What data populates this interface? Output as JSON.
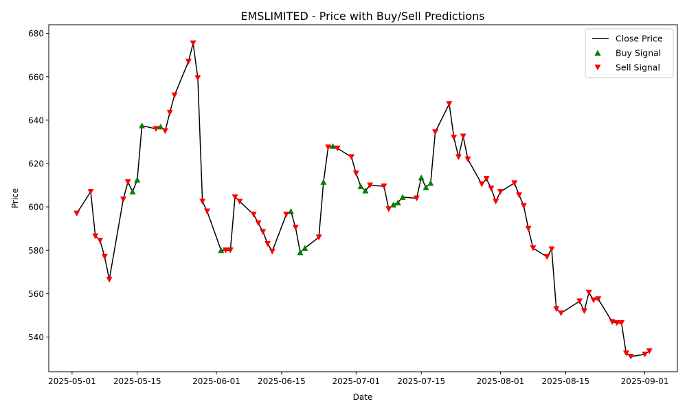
{
  "chart_data": {
    "type": "line",
    "title": "EMSLIMITED - Price with Buy/Sell Predictions",
    "xlabel": "Date",
    "ylabel": "Price",
    "xlim": [
      "2025-04-26",
      "2025-09-08"
    ],
    "ylim": [
      524,
      684
    ],
    "x_ticks": [
      "2025-05-01",
      "2025-05-15",
      "2025-06-01",
      "2025-06-15",
      "2025-07-01",
      "2025-07-15",
      "2025-08-01",
      "2025-08-15",
      "2025-09-01"
    ],
    "y_ticks": [
      540,
      560,
      580,
      600,
      620,
      640,
      660,
      680
    ],
    "grid": false,
    "legend_position": "top-right",
    "colors": {
      "close": "#000000",
      "buy": "#008000",
      "sell": "#ff0000"
    },
    "series": [
      {
        "name": "Close Price",
        "kind": "line",
        "points": [
          [
            "2025-05-02",
            597
          ],
          [
            "2025-05-05",
            607
          ],
          [
            "2025-05-06",
            586.5
          ],
          [
            "2025-05-07",
            584.5
          ],
          [
            "2025-05-08",
            577
          ],
          [
            "2025-05-09",
            566.5
          ],
          [
            "2025-05-12",
            603.5
          ],
          [
            "2025-05-13",
            611.5
          ],
          [
            "2025-05-14",
            607
          ],
          [
            "2025-05-15",
            612.5
          ],
          [
            "2025-05-16",
            637.5
          ],
          [
            "2025-05-19",
            636
          ],
          [
            "2025-05-20",
            637
          ],
          [
            "2025-05-21",
            635
          ],
          [
            "2025-05-22",
            643.5
          ],
          [
            "2025-05-23",
            651.5
          ],
          [
            "2025-05-26",
            667
          ],
          [
            "2025-05-27",
            675.5
          ],
          [
            "2025-05-28",
            659.5
          ],
          [
            "2025-05-29",
            602.5
          ],
          [
            "2025-05-30",
            598
          ],
          [
            "2025-06-02",
            580
          ],
          [
            "2025-06-03",
            580
          ],
          [
            "2025-06-04",
            580
          ],
          [
            "2025-06-05",
            604.5
          ],
          [
            "2025-06-06",
            602.5
          ],
          [
            "2025-06-09",
            596.5
          ],
          [
            "2025-06-10",
            592.5
          ],
          [
            "2025-06-11",
            588.5
          ],
          [
            "2025-06-12",
            583
          ],
          [
            "2025-06-13",
            579.5
          ],
          [
            "2025-06-16",
            596.5
          ],
          [
            "2025-06-17",
            598
          ],
          [
            "2025-06-18",
            590.5
          ],
          [
            "2025-06-19",
            579
          ],
          [
            "2025-06-20",
            581
          ],
          [
            "2025-06-23",
            586
          ],
          [
            "2025-06-24",
            611.5
          ],
          [
            "2025-06-25",
            627.5
          ],
          [
            "2025-06-26",
            628
          ],
          [
            "2025-06-27",
            627
          ],
          [
            "2025-06-30",
            623
          ],
          [
            "2025-07-01",
            615.5
          ],
          [
            "2025-07-02",
            609.5
          ],
          [
            "2025-07-03",
            607.5
          ],
          [
            "2025-07-04",
            610
          ],
          [
            "2025-07-07",
            609.5
          ],
          [
            "2025-07-08",
            599
          ],
          [
            "2025-07-09",
            601
          ],
          [
            "2025-07-10",
            602
          ],
          [
            "2025-07-11",
            604.5
          ],
          [
            "2025-07-14",
            604
          ],
          [
            "2025-07-15",
            613.5
          ],
          [
            "2025-07-16",
            609
          ],
          [
            "2025-07-17",
            611
          ],
          [
            "2025-07-18",
            634.5
          ],
          [
            "2025-07-21",
            647.5
          ],
          [
            "2025-07-22",
            632
          ],
          [
            "2025-07-23",
            623
          ],
          [
            "2025-07-24",
            632.5
          ],
          [
            "2025-07-25",
            622
          ],
          [
            "2025-07-28",
            610.5
          ],
          [
            "2025-07-29",
            613
          ],
          [
            "2025-07-30",
            608.5
          ],
          [
            "2025-07-31",
            602.5
          ],
          [
            "2025-08-01",
            607
          ],
          [
            "2025-08-04",
            611
          ],
          [
            "2025-08-05",
            605.5
          ],
          [
            "2025-08-06",
            600.5
          ],
          [
            "2025-08-07",
            590
          ],
          [
            "2025-08-08",
            581
          ],
          [
            "2025-08-11",
            577
          ],
          [
            "2025-08-12",
            580.5
          ],
          [
            "2025-08-13",
            553
          ],
          [
            "2025-08-14",
            551
          ],
          [
            "2025-08-18",
            556.5
          ],
          [
            "2025-08-19",
            552
          ],
          [
            "2025-08-20",
            560.5
          ],
          [
            "2025-08-21",
            557
          ],
          [
            "2025-08-22",
            557.5
          ],
          [
            "2025-08-25",
            547
          ],
          [
            "2025-08-26",
            546.5
          ],
          [
            "2025-08-27",
            546.5
          ],
          [
            "2025-08-28",
            532.5
          ],
          [
            "2025-08-29",
            531
          ],
          [
            "2025-09-01",
            532
          ],
          [
            "2025-09-02",
            533.5
          ]
        ]
      },
      {
        "name": "Buy Signal",
        "kind": "scatter",
        "marker": "triangle-up",
        "points": [
          [
            "2025-05-14",
            607
          ],
          [
            "2025-05-15",
            612.5
          ],
          [
            "2025-05-16",
            637.5
          ],
          [
            "2025-05-20",
            637
          ],
          [
            "2025-06-02",
            580
          ],
          [
            "2025-06-17",
            598
          ],
          [
            "2025-06-19",
            579
          ],
          [
            "2025-06-20",
            581
          ],
          [
            "2025-06-24",
            611.5
          ],
          [
            "2025-06-26",
            628
          ],
          [
            "2025-07-02",
            609.5
          ],
          [
            "2025-07-03",
            607.5
          ],
          [
            "2025-07-09",
            601
          ],
          [
            "2025-07-10",
            602
          ],
          [
            "2025-07-11",
            604.5
          ],
          [
            "2025-07-15",
            613.5
          ],
          [
            "2025-07-16",
            609
          ],
          [
            "2025-07-17",
            611
          ]
        ]
      },
      {
        "name": "Sell Signal",
        "kind": "scatter",
        "marker": "triangle-down",
        "points": [
          [
            "2025-05-02",
            597
          ],
          [
            "2025-05-05",
            607
          ],
          [
            "2025-05-06",
            586.5
          ],
          [
            "2025-05-07",
            584.5
          ],
          [
            "2025-05-08",
            577
          ],
          [
            "2025-05-09",
            566.5
          ],
          [
            "2025-05-12",
            603.5
          ],
          [
            "2025-05-13",
            611.5
          ],
          [
            "2025-05-19",
            636
          ],
          [
            "2025-05-21",
            635
          ],
          [
            "2025-05-22",
            643.5
          ],
          [
            "2025-05-23",
            651.5
          ],
          [
            "2025-05-26",
            667
          ],
          [
            "2025-05-27",
            675.5
          ],
          [
            "2025-05-28",
            659.5
          ],
          [
            "2025-05-29",
            602.5
          ],
          [
            "2025-05-30",
            598
          ],
          [
            "2025-06-03",
            580
          ],
          [
            "2025-06-04",
            580
          ],
          [
            "2025-06-05",
            604.5
          ],
          [
            "2025-06-06",
            602.5
          ],
          [
            "2025-06-09",
            596.5
          ],
          [
            "2025-06-10",
            592.5
          ],
          [
            "2025-06-11",
            588.5
          ],
          [
            "2025-06-12",
            583
          ],
          [
            "2025-06-13",
            579.5
          ],
          [
            "2025-06-16",
            596.5
          ],
          [
            "2025-06-18",
            590.5
          ],
          [
            "2025-06-23",
            586
          ],
          [
            "2025-06-25",
            627.5
          ],
          [
            "2025-06-27",
            627
          ],
          [
            "2025-06-30",
            623
          ],
          [
            "2025-07-01",
            615.5
          ],
          [
            "2025-07-04",
            610
          ],
          [
            "2025-07-07",
            609.5
          ],
          [
            "2025-07-08",
            599
          ],
          [
            "2025-07-14",
            604
          ],
          [
            "2025-07-18",
            634.5
          ],
          [
            "2025-07-21",
            647.5
          ],
          [
            "2025-07-22",
            632
          ],
          [
            "2025-07-23",
            623
          ],
          [
            "2025-07-24",
            632.5
          ],
          [
            "2025-07-25",
            622
          ],
          [
            "2025-07-28",
            610.5
          ],
          [
            "2025-07-29",
            613
          ],
          [
            "2025-07-30",
            608.5
          ],
          [
            "2025-07-31",
            602.5
          ],
          [
            "2025-08-01",
            607
          ],
          [
            "2025-08-04",
            611
          ],
          [
            "2025-08-05",
            605.5
          ],
          [
            "2025-08-06",
            600.5
          ],
          [
            "2025-08-07",
            590
          ],
          [
            "2025-08-08",
            581
          ],
          [
            "2025-08-11",
            577
          ],
          [
            "2025-08-12",
            580.5
          ],
          [
            "2025-08-13",
            553
          ],
          [
            "2025-08-14",
            551
          ],
          [
            "2025-08-18",
            556.5
          ],
          [
            "2025-08-19",
            552
          ],
          [
            "2025-08-20",
            560.5
          ],
          [
            "2025-08-21",
            557
          ],
          [
            "2025-08-22",
            557.5
          ],
          [
            "2025-08-25",
            547
          ],
          [
            "2025-08-26",
            546.5
          ],
          [
            "2025-08-27",
            546.5
          ],
          [
            "2025-08-28",
            532.5
          ],
          [
            "2025-08-29",
            531
          ],
          [
            "2025-09-01",
            532
          ],
          [
            "2025-09-02",
            533.5
          ]
        ]
      }
    ]
  }
}
